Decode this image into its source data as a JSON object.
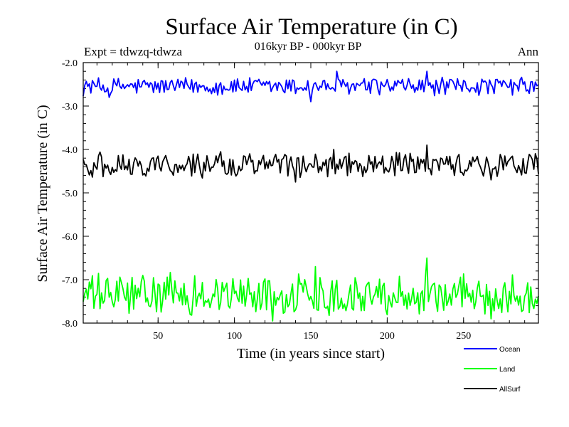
{
  "chart_data": {
    "type": "line",
    "title": "Surface Air Temperature (in C)",
    "subtitle": "016kyr BP - 000kyr BP",
    "experiment_label": "Expt = tdwzq-tdwza",
    "season_label": "Ann",
    "xlabel": "Time (in years since start)",
    "ylabel": "Surface Air Temperature (in C)",
    "xlim": [
      1,
      299
    ],
    "ylim": [
      -8.0,
      -2.0
    ],
    "x_ticks": [
      50,
      100,
      150,
      200,
      250
    ],
    "x_tick_labels": [
      "50",
      "100",
      "150",
      "200",
      "250"
    ],
    "y_ticks": [
      -2.0,
      -3.0,
      -4.0,
      -5.0,
      -6.0,
      -7.0,
      -8.0
    ],
    "y_tick_labels": [
      "-2.0",
      "-3.0",
      "-4.0",
      "-5.0",
      "-6.0",
      "-7.0",
      "-8.0"
    ],
    "grid": false,
    "legend_position": "bottom-right",
    "series": [
      {
        "name": "Ocean",
        "color": "#0000ff",
        "mean": -2.55,
        "amplitude": 0.22,
        "peaks": [
          {
            "x": 167,
            "value": -2.2
          },
          {
            "x": 226,
            "value": -2.2
          }
        ],
        "troughs": [
          {
            "x": 18,
            "value": -2.8
          },
          {
            "x": 150,
            "value": -2.9
          }
        ]
      },
      {
        "name": "Land",
        "color": "#00ff00",
        "mean": -7.35,
        "amplitude": 0.5,
        "peaks": [
          {
            "x": 226,
            "value": -6.5
          },
          {
            "x": 153,
            "value": -6.7
          }
        ],
        "troughs": [
          {
            "x": 125,
            "value": -7.95
          },
          {
            "x": 268,
            "value": -7.9
          }
        ]
      },
      {
        "name": "AllSurf",
        "color": "#000000",
        "mean": -4.35,
        "amplitude": 0.3,
        "peaks": [
          {
            "x": 226,
            "value": -3.9
          },
          {
            "x": 165,
            "value": -4.0
          }
        ],
        "troughs": [
          {
            "x": 140,
            "value": -4.75
          },
          {
            "x": 268,
            "value": -4.7
          }
        ]
      }
    ]
  }
}
